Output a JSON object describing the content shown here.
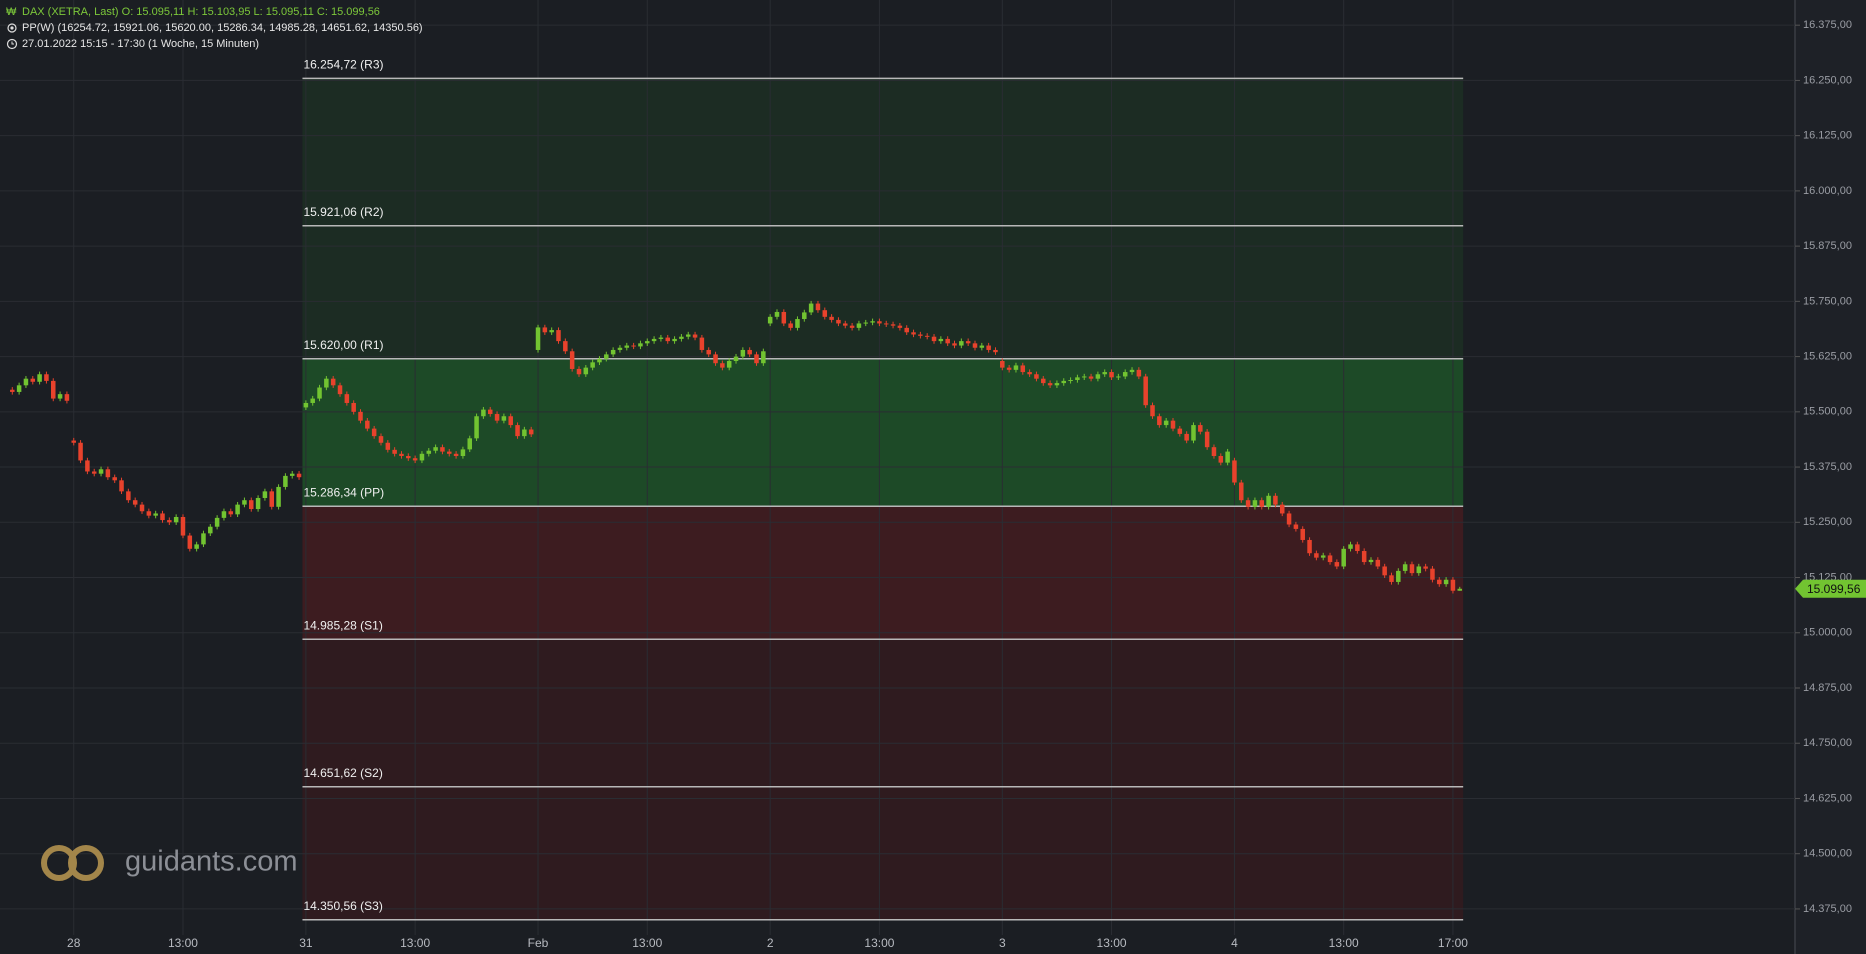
{
  "header": {
    "line1": "DAX (XETRA, Last)   O: 15.095,11   H: 15.103,95   L: 15.095,11   C: 15.099,56",
    "line2": "PP(W)   (16254.72, 15921.06, 15620.00, 15286.34, 14985.28, 14651.62, 14350.56)",
    "line3": "27.01.2022 15:15 - 17:30    (1 Woche, 15 Minuten)"
  },
  "logo": "guidants.com",
  "chart_data": {
    "type": "candlestick",
    "up_color": "#72c431",
    "down_color": "#e8422c",
    "ylim": [
      14316,
      16432
    ],
    "yticks": [
      {
        "value": 14375,
        "label": "14.375,00"
      },
      {
        "value": 14500,
        "label": "14.500,00"
      },
      {
        "value": 14625,
        "label": "14.625,00"
      },
      {
        "value": 14750,
        "label": "14.750,00"
      },
      {
        "value": 14875,
        "label": "14.875,00"
      },
      {
        "value": 15000,
        "label": "15.000,00"
      },
      {
        "value": 15125,
        "label": "15.125,00"
      },
      {
        "value": 15250,
        "label": "15.250,00"
      },
      {
        "value": 15375,
        "label": "15.375,00"
      },
      {
        "value": 15500,
        "label": "15.500,00"
      },
      {
        "value": 15625,
        "label": "15.625,00"
      },
      {
        "value": 15750,
        "label": "15.750,00"
      },
      {
        "value": 15875,
        "label": "15.875,00"
      },
      {
        "value": 16000,
        "label": "16.000,00"
      },
      {
        "value": 16125,
        "label": "16.125,00"
      },
      {
        "value": 16250,
        "label": "16.250,00"
      },
      {
        "value": 16375,
        "label": "16.375,00"
      }
    ],
    "xlim": [
      -1.8,
      261.1
    ],
    "xticks": [
      {
        "value": 9,
        "label": "28"
      },
      {
        "value": 25,
        "label": "13:00"
      },
      {
        "value": 43,
        "label": "31"
      },
      {
        "value": 59,
        "label": "13:00"
      },
      {
        "value": 77,
        "label": "Feb"
      },
      {
        "value": 93,
        "label": "13:00"
      },
      {
        "value": 111,
        "label": "2"
      },
      {
        "value": 127,
        "label": "13:00"
      },
      {
        "value": 145,
        "label": "3"
      },
      {
        "value": 161,
        "label": "13:00"
      },
      {
        "value": 179,
        "label": "4"
      },
      {
        "value": 195,
        "label": "13:00"
      },
      {
        "value": 211,
        "label": "17:00"
      }
    ],
    "grid": true,
    "last_price": {
      "value": 15099.56,
      "label": "15.099,56"
    },
    "pivots": [
      {
        "value": 16254.72,
        "label": "16.254,72 (R3)"
      },
      {
        "value": 15921.06,
        "label": "15.921,06 (R2)"
      },
      {
        "value": 15620.0,
        "label": "15.620,00 (R1)"
      },
      {
        "value": 15286.34,
        "label": "15.286,34 (PP)"
      },
      {
        "value": 14985.28,
        "label": "14.985,28 (S1)"
      },
      {
        "value": 14651.62,
        "label": "14.651,62 (S2)"
      },
      {
        "value": 14350.56,
        "label": "14.350,56 (S3)"
      }
    ],
    "candles": [
      [
        15550,
        15556,
        15539,
        15545
      ],
      [
        15545,
        15566,
        15539,
        15560
      ],
      [
        15560,
        15581,
        15554,
        15575
      ],
      [
        15575,
        15581,
        15562,
        15568
      ],
      [
        15568,
        15591,
        15562,
        15585
      ],
      [
        15585,
        15591,
        15564,
        15570
      ],
      [
        15570,
        15576,
        15524,
        15530
      ],
      [
        15530,
        15546,
        15524,
        15540
      ],
      [
        15540,
        15546,
        15519,
        15525
      ],
      [
        15435,
        15441,
        15424,
        15430
      ],
      [
        15430,
        15436,
        15384,
        15390
      ],
      [
        15390,
        15396,
        15359,
        15365
      ],
      [
        15365,
        15371,
        15354,
        15360
      ],
      [
        15360,
        15376,
        15354,
        15370
      ],
      [
        15370,
        15376,
        15346,
        15352
      ],
      [
        15352,
        15358,
        15339,
        15345
      ],
      [
        15345,
        15351,
        15314,
        15320
      ],
      [
        15320,
        15326,
        15294,
        15300
      ],
      [
        15300,
        15306,
        15284,
        15290
      ],
      [
        15290,
        15296,
        15269,
        15275
      ],
      [
        15275,
        15281,
        15259,
        15265
      ],
      [
        15265,
        15276,
        15259,
        15270
      ],
      [
        15270,
        15276,
        15249,
        15255
      ],
      [
        15255,
        15261,
        15244,
        15250
      ],
      [
        15250,
        15268,
        15244,
        15262
      ],
      [
        15262,
        15268,
        15214,
        15220
      ],
      [
        15220,
        15226,
        15184,
        15190
      ],
      [
        15190,
        15206,
        15184,
        15200
      ],
      [
        15200,
        15231,
        15194,
        15225
      ],
      [
        15225,
        15246,
        15219,
        15240
      ],
      [
        15240,
        15266,
        15234,
        15260
      ],
      [
        15260,
        15281,
        15254,
        15275
      ],
      [
        15275,
        15281,
        15262,
        15268
      ],
      [
        15268,
        15296,
        15262,
        15290
      ],
      [
        15290,
        15306,
        15284,
        15300
      ],
      [
        15300,
        15306,
        15274,
        15280
      ],
      [
        15280,
        15311,
        15274,
        15305
      ],
      [
        15305,
        15326,
        15299,
        15320
      ],
      [
        15320,
        15326,
        15279,
        15285
      ],
      [
        15285,
        15336,
        15279,
        15330
      ],
      [
        15330,
        15361,
        15324,
        15355
      ],
      [
        15355,
        15366,
        15349,
        15360
      ],
      [
        15360,
        15366,
        15346,
        15352
      ],
      [
        15510,
        15526,
        15504,
        15520
      ],
      [
        15520,
        15536,
        15514,
        15530
      ],
      [
        15530,
        15561,
        15524,
        15555
      ],
      [
        15555,
        15581,
        15549,
        15575
      ],
      [
        15575,
        15581,
        15554,
        15560
      ],
      [
        15560,
        15566,
        15534,
        15540
      ],
      [
        15540,
        15546,
        15514,
        15520
      ],
      [
        15520,
        15526,
        15494,
        15500
      ],
      [
        15500,
        15506,
        15474,
        15480
      ],
      [
        15480,
        15486,
        15456,
        15462
      ],
      [
        15462,
        15468,
        15439,
        15445
      ],
      [
        15445,
        15451,
        15424,
        15430
      ],
      [
        15430,
        15436,
        15408,
        15414
      ],
      [
        15414,
        15420,
        15399,
        15405
      ],
      [
        15405,
        15411,
        15394,
        15400
      ],
      [
        15400,
        15406,
        15389,
        15395
      ],
      [
        15395,
        15401,
        15384,
        15390
      ],
      [
        15390,
        15411,
        15384,
        15405
      ],
      [
        15405,
        15418,
        15399,
        15412
      ],
      [
        15412,
        15426,
        15406,
        15420
      ],
      [
        15420,
        15426,
        15404,
        15410
      ],
      [
        15410,
        15416,
        15399,
        15405
      ],
      [
        15405,
        15411,
        15394,
        15400
      ],
      [
        15400,
        15421,
        15394,
        15415
      ],
      [
        15415,
        15446,
        15409,
        15440
      ],
      [
        15440,
        15496,
        15434,
        15490
      ],
      [
        15490,
        15511,
        15484,
        15505
      ],
      [
        15505,
        15511,
        15489,
        15495
      ],
      [
        15495,
        15501,
        15474,
        15480
      ],
      [
        15480,
        15496,
        15474,
        15490
      ],
      [
        15490,
        15496,
        15464,
        15470
      ],
      [
        15470,
        15476,
        15439,
        15445
      ],
      [
        15445,
        15466,
        15439,
        15460
      ],
      [
        15460,
        15466,
        15443,
        15449
      ],
      [
        15640,
        15697,
        15634,
        15691
      ],
      [
        15691,
        15697,
        15674,
        15680
      ],
      [
        15680,
        15691,
        15674,
        15685
      ],
      [
        15685,
        15691,
        15654,
        15660
      ],
      [
        15660,
        15666,
        15631,
        15637
      ],
      [
        15637,
        15643,
        15591,
        15597
      ],
      [
        15597,
        15603,
        15579,
        15585
      ],
      [
        15585,
        15606,
        15579,
        15600
      ],
      [
        15600,
        15618,
        15594,
        15612
      ],
      [
        15612,
        15626,
        15606,
        15620
      ],
      [
        15620,
        15636,
        15614,
        15630
      ],
      [
        15630,
        15646,
        15624,
        15640
      ],
      [
        15640,
        15651,
        15634,
        15645
      ],
      [
        15645,
        15656,
        15639,
        15650
      ],
      [
        15650,
        15656,
        15642,
        15648
      ],
      [
        15648,
        15661,
        15642,
        15655
      ],
      [
        15655,
        15666,
        15649,
        15660
      ],
      [
        15660,
        15671,
        15654,
        15665
      ],
      [
        15665,
        15674,
        15659,
        15668
      ],
      [
        15668,
        15674,
        15654,
        15660
      ],
      [
        15660,
        15671,
        15654,
        15665
      ],
      [
        15665,
        15676,
        15659,
        15670
      ],
      [
        15670,
        15681,
        15664,
        15675
      ],
      [
        15675,
        15681,
        15662,
        15668
      ],
      [
        15668,
        15674,
        15634,
        15640
      ],
      [
        15640,
        15646,
        15624,
        15630
      ],
      [
        15630,
        15636,
        15604,
        15610
      ],
      [
        15610,
        15616,
        15594,
        15600
      ],
      [
        15600,
        15621,
        15594,
        15615
      ],
      [
        15615,
        15631,
        15609,
        15625
      ],
      [
        15625,
        15646,
        15619,
        15640
      ],
      [
        15640,
        15646,
        15624,
        15630
      ],
      [
        15630,
        15636,
        15604,
        15610
      ],
      [
        15610,
        15643,
        15604,
        15637
      ],
      [
        15700,
        15721,
        15694,
        15715
      ],
      [
        15715,
        15732,
        15709,
        15726
      ],
      [
        15726,
        15732,
        15694,
        15700
      ],
      [
        15700,
        15706,
        15684,
        15690
      ],
      [
        15690,
        15716,
        15684,
        15710
      ],
      [
        15710,
        15731,
        15704,
        15725
      ],
      [
        15725,
        15751,
        15719,
        15745
      ],
      [
        15745,
        15751,
        15724,
        15730
      ],
      [
        15730,
        15736,
        15709,
        15715
      ],
      [
        15715,
        15721,
        15702,
        15708
      ],
      [
        15708,
        15714,
        15694,
        15700
      ],
      [
        15700,
        15706,
        15689,
        15695
      ],
      [
        15695,
        15701,
        15684,
        15690
      ],
      [
        15690,
        15706,
        15684,
        15700
      ],
      [
        15700,
        15708,
        15694,
        15702
      ],
      [
        15702,
        15711,
        15696,
        15705
      ],
      [
        15705,
        15711,
        15694,
        15700
      ],
      [
        15700,
        15706,
        15692,
        15698
      ],
      [
        15698,
        15704,
        15689,
        15695
      ],
      [
        15695,
        15701,
        15684,
        15690
      ],
      [
        15690,
        15696,
        15674,
        15680
      ],
      [
        15680,
        15686,
        15669,
        15675
      ],
      [
        15675,
        15681,
        15666,
        15672
      ],
      [
        15672,
        15678,
        15664,
        15670
      ],
      [
        15670,
        15676,
        15654,
        15660
      ],
      [
        15660,
        15671,
        15654,
        15665
      ],
      [
        15665,
        15671,
        15649,
        15655
      ],
      [
        15655,
        15661,
        15644,
        15650
      ],
      [
        15650,
        15666,
        15644,
        15660
      ],
      [
        15660,
        15666,
        15649,
        15655
      ],
      [
        15655,
        15661,
        15639,
        15645
      ],
      [
        15645,
        15656,
        15639,
        15650
      ],
      [
        15650,
        15656,
        15634,
        15640
      ],
      [
        15640,
        15646,
        15629,
        15635
      ],
      [
        15615,
        15621,
        15594,
        15600
      ],
      [
        15600,
        15606,
        15589,
        15595
      ],
      [
        15595,
        15611,
        15589,
        15605
      ],
      [
        15605,
        15611,
        15584,
        15590
      ],
      [
        15590,
        15596,
        15579,
        15585
      ],
      [
        15585,
        15591,
        15569,
        15575
      ],
      [
        15575,
        15581,
        15559,
        15565
      ],
      [
        15565,
        15571,
        15554,
        15560
      ],
      [
        15560,
        15571,
        15554,
        15565
      ],
      [
        15565,
        15576,
        15559,
        15570
      ],
      [
        15570,
        15578,
        15564,
        15572
      ],
      [
        15572,
        15584,
        15566,
        15578
      ],
      [
        15578,
        15586,
        15572,
        15580
      ],
      [
        15580,
        15586,
        15569,
        15575
      ],
      [
        15575,
        15591,
        15569,
        15585
      ],
      [
        15585,
        15596,
        15579,
        15590
      ],
      [
        15590,
        15596,
        15572,
        15578
      ],
      [
        15578,
        15586,
        15572,
        15580
      ],
      [
        15580,
        15596,
        15574,
        15590
      ],
      [
        15590,
        15601,
        15584,
        15595
      ],
      [
        15595,
        15601,
        15574,
        15580
      ],
      [
        15580,
        15586,
        15509,
        15515
      ],
      [
        15515,
        15521,
        15484,
        15490
      ],
      [
        15490,
        15496,
        15464,
        15470
      ],
      [
        15470,
        15486,
        15464,
        15480
      ],
      [
        15480,
        15486,
        15456,
        15462
      ],
      [
        15462,
        15468,
        15444,
        15450
      ],
      [
        15450,
        15456,
        15429,
        15435
      ],
      [
        15435,
        15476,
        15429,
        15470
      ],
      [
        15470,
        15476,
        15449,
        15455
      ],
      [
        15455,
        15461,
        15414,
        15420
      ],
      [
        15420,
        15426,
        15394,
        15400
      ],
      [
        15400,
        15406,
        15379,
        15385
      ],
      [
        15385,
        15416,
        15379,
        15410
      ],
      [
        15390,
        15396,
        15334,
        15340
      ],
      [
        15340,
        15346,
        15294,
        15300
      ],
      [
        15300,
        15306,
        15279,
        15285
      ],
      [
        15285,
        15306,
        15279,
        15300
      ],
      [
        15300,
        15306,
        15279,
        15285
      ],
      [
        15285,
        15316,
        15279,
        15310
      ],
      [
        15310,
        15316,
        15284,
        15290
      ],
      [
        15290,
        15296,
        15264,
        15270
      ],
      [
        15270,
        15276,
        15239,
        15245
      ],
      [
        15245,
        15251,
        15229,
        15235
      ],
      [
        15235,
        15241,
        15204,
        15210
      ],
      [
        15210,
        15216,
        15174,
        15180
      ],
      [
        15180,
        15186,
        15164,
        15170
      ],
      [
        15170,
        15181,
        15164,
        15175
      ],
      [
        15175,
        15181,
        15154,
        15160
      ],
      [
        15160,
        15166,
        15144,
        15150
      ],
      [
        15150,
        15196,
        15144,
        15190
      ],
      [
        15190,
        15206,
        15184,
        15200
      ],
      [
        15200,
        15206,
        15179,
        15185
      ],
      [
        15185,
        15191,
        15154,
        15160
      ],
      [
        15160,
        15171,
        15154,
        15165
      ],
      [
        15165,
        15171,
        15144,
        15150
      ],
      [
        15150,
        15156,
        15124,
        15130
      ],
      [
        15130,
        15136,
        15109,
        15115
      ],
      [
        15115,
        15146,
        15109,
        15140
      ],
      [
        15140,
        15161,
        15134,
        15155
      ],
      [
        15155,
        15161,
        15129,
        15135
      ],
      [
        15135,
        15156,
        15129,
        15150
      ],
      [
        15150,
        15156,
        15139,
        15145
      ],
      [
        15145,
        15151,
        15114,
        15120
      ],
      [
        15120,
        15126,
        15104,
        15110
      ],
      [
        15110,
        15126,
        15104,
        15120
      ],
      [
        15120,
        15126,
        15089,
        15095.11
      ],
      [
        15095.11,
        15103.95,
        15095.11,
        15099.56
      ]
    ]
  }
}
